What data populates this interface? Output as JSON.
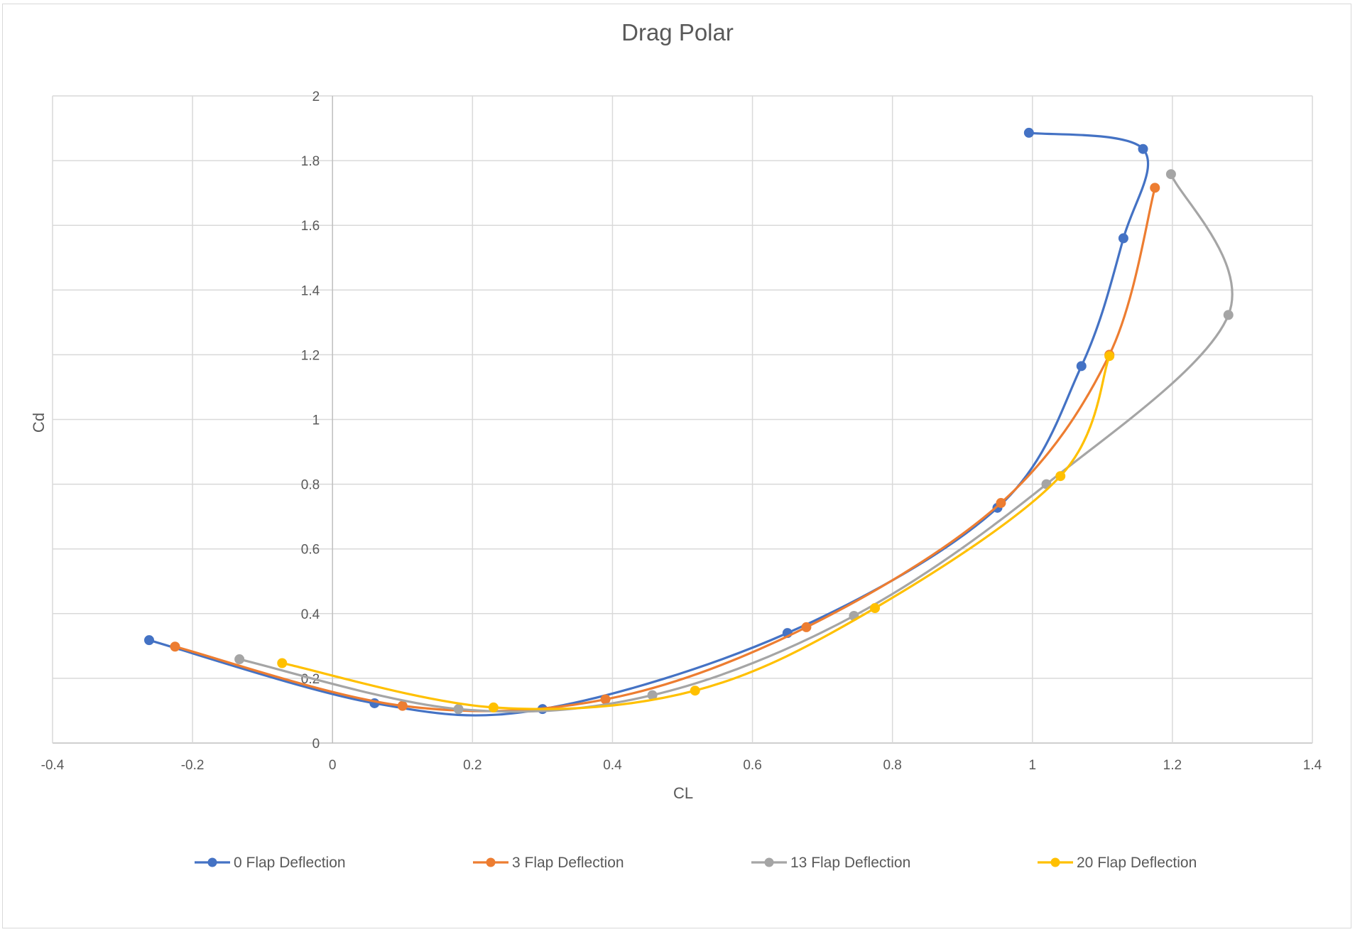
{
  "chart_data": {
    "type": "line",
    "title": "Drag Polar",
    "xlabel": "CL",
    "ylabel": "Cd",
    "xlim": [
      -0.4,
      1.4
    ],
    "ylim": [
      0,
      2
    ],
    "xticks": [
      -0.4,
      -0.2,
      0,
      0.2,
      0.4,
      0.6,
      0.8,
      1,
      1.2,
      1.4
    ],
    "yticks": [
      0,
      0.2,
      0.4,
      0.6,
      0.8,
      1,
      1.2,
      1.4,
      1.6,
      1.8,
      2
    ],
    "xtick_labels": [
      "-0.4",
      "-0.2",
      "0",
      "0.2",
      "0.4",
      "0.6",
      "0.8",
      "1",
      "1.2",
      "1.4"
    ],
    "ytick_labels": [
      "0",
      "0.2",
      "0.4",
      "0.6",
      "0.8",
      "1",
      "1.2",
      "1.4",
      "1.6",
      "1.8",
      "2"
    ],
    "grid": true,
    "smooth": true,
    "legend_position": "bottom",
    "series": [
      {
        "name": "0 Flap Deflection",
        "color": "#4472c4",
        "points": [
          [
            -0.262,
            0.318
          ],
          [
            0.06,
            0.123
          ],
          [
            0.3,
            0.105
          ],
          [
            0.65,
            0.34
          ],
          [
            0.95,
            0.727
          ],
          [
            1.07,
            1.165
          ],
          [
            1.13,
            1.56
          ],
          [
            1.158,
            1.836
          ],
          [
            0.995,
            1.886
          ]
        ]
      },
      {
        "name": "3 Flap Deflection",
        "color": "#ed7d31",
        "points": [
          [
            -0.225,
            0.298
          ],
          [
            0.1,
            0.115
          ],
          [
            0.39,
            0.135
          ],
          [
            0.677,
            0.358
          ],
          [
            0.955,
            0.742
          ],
          [
            1.11,
            1.2
          ],
          [
            1.175,
            1.716
          ]
        ]
      },
      {
        "name": "13 Flap Deflection",
        "color": "#a5a5a5",
        "points": [
          [
            -0.133,
            0.259
          ],
          [
            0.18,
            0.105
          ],
          [
            0.457,
            0.148
          ],
          [
            0.745,
            0.393
          ],
          [
            1.02,
            0.8
          ],
          [
            1.28,
            1.323
          ],
          [
            1.198,
            1.758
          ]
        ]
      },
      {
        "name": "20 Flap Deflection",
        "color": "#ffc000",
        "points": [
          [
            -0.072,
            0.247
          ],
          [
            0.23,
            0.11
          ],
          [
            0.518,
            0.162
          ],
          [
            0.775,
            0.417
          ],
          [
            1.04,
            0.825
          ],
          [
            1.11,
            1.196
          ]
        ]
      }
    ]
  }
}
